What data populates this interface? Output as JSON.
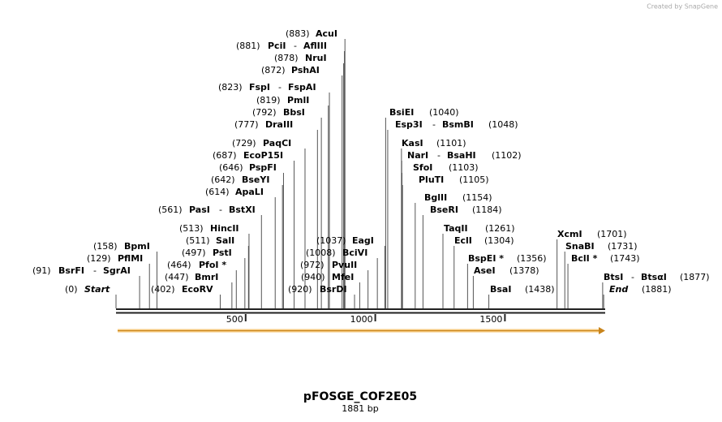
{
  "credit": "Created by SnapGene",
  "map": {
    "title": "pFOSGE_COF2E05",
    "subtitle": "1881 bp",
    "ticks": [
      500,
      1000,
      1500
    ],
    "sites": [
      {
        "names": [
          "AcuI"
        ],
        "position": {
          "value": 883,
          "label": "(883)"
        }
      },
      {
        "names": [
          "PciI",
          "AflIII"
        ],
        "position": {
          "value": 881,
          "label": "(881)"
        }
      },
      {
        "names": [
          "NruI"
        ],
        "position": {
          "value": 878,
          "label": "(878)"
        }
      },
      {
        "names": [
          "PshAI"
        ],
        "position": {
          "value": 872,
          "label": "(872)"
        }
      },
      {
        "names": [
          "FspI",
          "FspAI"
        ],
        "position": {
          "value": 823,
          "label": "(823)"
        }
      },
      {
        "names": [
          "PmlI"
        ],
        "position": {
          "value": 819,
          "label": "(819)"
        }
      },
      {
        "names": [
          "BbsI"
        ],
        "position": {
          "value": 792,
          "label": "(792)"
        }
      },
      {
        "names": [
          "DraIII"
        ],
        "position": {
          "value": 777,
          "label": "(777)"
        }
      },
      {
        "names": [
          "PaqCI"
        ],
        "position": {
          "value": 729,
          "label": "(729)"
        }
      },
      {
        "names": [
          "EcoP15I"
        ],
        "position": {
          "value": 687,
          "label": "(687)"
        }
      },
      {
        "names": [
          "PspFI"
        ],
        "position": {
          "value": 646,
          "label": "(646)"
        }
      },
      {
        "names": [
          "BseYI"
        ],
        "position": {
          "value": 642,
          "label": "(642)"
        }
      },
      {
        "names": [
          "ApaLI"
        ],
        "position": {
          "value": 614,
          "label": "(614)"
        }
      },
      {
        "names": [
          "PasI",
          "BstXI"
        ],
        "position": {
          "value": 561,
          "label": "(561)"
        }
      },
      {
        "names": [
          "HincII"
        ],
        "position": {
          "value": 513,
          "label": "(513)"
        }
      },
      {
        "names": [
          "SalI"
        ],
        "position": {
          "value": 511,
          "label": "(511)"
        }
      },
      {
        "names": [
          "PstI"
        ],
        "position": {
          "value": 497,
          "label": "(497)"
        }
      },
      {
        "names": [
          "PfoI *"
        ],
        "position": {
          "value": 464,
          "label": "(464)"
        }
      },
      {
        "names": [
          "BmrI"
        ],
        "position": {
          "value": 447,
          "label": "(447)"
        }
      },
      {
        "names": [
          "EcoRV"
        ],
        "position": {
          "value": 402,
          "label": "(402)"
        }
      },
      {
        "names": [
          "BpmI"
        ],
        "position": {
          "value": 158,
          "label": "(158)"
        }
      },
      {
        "names": [
          "PflMI"
        ],
        "position": {
          "value": 129,
          "label": "(129)"
        }
      },
      {
        "names": [
          "BsrFI",
          "SgrAI"
        ],
        "position": {
          "value": 91,
          "label": "(91)"
        }
      },
      {
        "names": [
          "Start"
        ],
        "position": {
          "value": 0,
          "label": "(0)"
        }
      },
      {
        "names": [
          "EagI"
        ],
        "position": {
          "value": 1037,
          "label": "(1037)"
        }
      },
      {
        "names": [
          "BciVI"
        ],
        "position": {
          "value": 1008,
          "label": "(1008)"
        }
      },
      {
        "names": [
          "PvuII"
        ],
        "position": {
          "value": 972,
          "label": "(972)"
        }
      },
      {
        "names": [
          "MfeI"
        ],
        "position": {
          "value": 940,
          "label": "(940)"
        }
      },
      {
        "names": [
          "BsrDI"
        ],
        "position": {
          "value": 920,
          "label": "(920)"
        }
      },
      {
        "names": [
          "BsiEI"
        ],
        "position": {
          "value": 1040,
          "label": "(1040)"
        }
      },
      {
        "names": [
          "Esp3I",
          "BsmBI"
        ],
        "position": {
          "value": 1048,
          "label": "(1048)"
        }
      },
      {
        "names": [
          "KasI"
        ],
        "position": {
          "value": 1101,
          "label": "(1101)"
        }
      },
      {
        "names": [
          "NarI",
          "BsaHI"
        ],
        "position": {
          "value": 1102,
          "label": "(1102)"
        }
      },
      {
        "names": [
          "SfoI"
        ],
        "position": {
          "value": 1103,
          "label": "(1103)"
        }
      },
      {
        "names": [
          "PluTI"
        ],
        "position": {
          "value": 1105,
          "label": "(1105)"
        }
      },
      {
        "names": [
          "BglII"
        ],
        "position": {
          "value": 1154,
          "label": "(1154)"
        }
      },
      {
        "names": [
          "BseRI"
        ],
        "position": {
          "value": 1184,
          "label": "(1184)"
        }
      },
      {
        "names": [
          "TaqII"
        ],
        "position": {
          "value": 1261,
          "label": "(1261)"
        }
      },
      {
        "names": [
          "EclI"
        ],
        "position": {
          "value": 1304,
          "label": "(1304)"
        }
      },
      {
        "names": [
          "BspEI *"
        ],
        "position": {
          "value": 1356,
          "label": "(1356)"
        }
      },
      {
        "names": [
          "AseI"
        ],
        "position": {
          "value": 1378,
          "label": "(1378)"
        }
      },
      {
        "names": [
          "BsaI"
        ],
        "position": {
          "value": 1438,
          "label": "(1438)"
        }
      },
      {
        "names": [
          "XcmI"
        ],
        "position": {
          "value": 1701,
          "label": "(1701)"
        }
      },
      {
        "names": [
          "SnaBI"
        ],
        "position": {
          "value": 1731,
          "label": "(1731)"
        }
      },
      {
        "names": [
          "BclI *"
        ],
        "position": {
          "value": 1743,
          "label": "(1743)"
        }
      },
      {
        "names": [
          "BtsI",
          "BtsαI"
        ],
        "position": {
          "value": 1877,
          "label": "(1877)"
        }
      },
      {
        "names": [
          "End"
        ],
        "position": {
          "value": 1881,
          "label": "(1881)"
        }
      }
    ]
  }
}
